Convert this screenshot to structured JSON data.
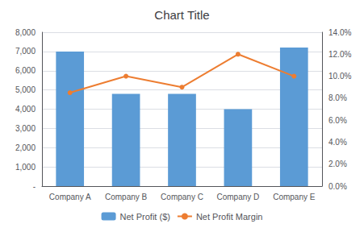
{
  "chart_data": {
    "type": "bar",
    "title": "Chart Title",
    "categories": [
      "Company A",
      "Company B",
      "Company C",
      "Company D",
      "Company E"
    ],
    "series": [
      {
        "name": "Net Profit ($)",
        "type": "bar",
        "color": "#5B9BD5",
        "values": [
          7000,
          4800,
          4800,
          4000,
          7200
        ]
      },
      {
        "name": "Net Profit Margin",
        "type": "line",
        "color": "#ED7D31",
        "marker": "circle",
        "axis": "y2",
        "values": [
          0.085,
          0.1,
          0.09,
          0.12,
          0.1
        ]
      }
    ],
    "ylim": [
      0,
      8000
    ],
    "yticks": [
      {
        "value": 0,
        "label": "-"
      },
      {
        "value": 1000,
        "label": "1,000"
      },
      {
        "value": 2000,
        "label": "2,000"
      },
      {
        "value": 3000,
        "label": "3,000"
      },
      {
        "value": 4000,
        "label": "4,000"
      },
      {
        "value": 5000,
        "label": "5,000"
      },
      {
        "value": 6000,
        "label": "6,000"
      },
      {
        "value": 7000,
        "label": "7,000"
      },
      {
        "value": 8000,
        "label": "8,000"
      }
    ],
    "y2lim": [
      0,
      0.14
    ],
    "y2ticks": [
      {
        "value": 0,
        "label": "0.0%"
      },
      {
        "value": 0.02,
        "label": "2.0%"
      },
      {
        "value": 0.04,
        "label": "4.0%"
      },
      {
        "value": 0.06,
        "label": "6.0%"
      },
      {
        "value": 0.08,
        "label": "8.0%"
      },
      {
        "value": 0.1,
        "label": "10.0%"
      },
      {
        "value": 0.12,
        "label": "12.0%"
      },
      {
        "value": 0.14,
        "label": "14.0%"
      }
    ],
    "grid": true,
    "legend": "bottom"
  }
}
